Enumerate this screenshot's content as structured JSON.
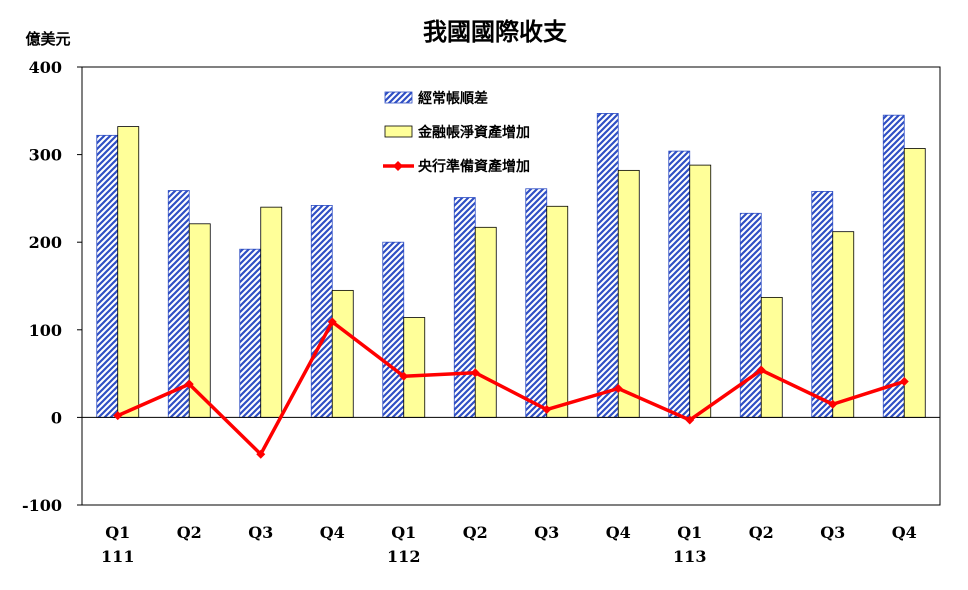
{
  "chart_data": {
    "type": "bar",
    "title": "我國國際收支",
    "ylabel": "億美元",
    "xlabel": "",
    "ylim": [
      -100,
      400
    ],
    "yticks": [
      400,
      300,
      200,
      100,
      0,
      -100
    ],
    "grid": false,
    "legend_position": "top-center",
    "categories": [
      "Q1",
      "Q2",
      "Q3",
      "Q4",
      "Q1",
      "Q2",
      "Q3",
      "Q4",
      "Q1",
      "Q2",
      "Q3",
      "Q4"
    ],
    "year_labels": [
      "111",
      "",
      "",
      "",
      "112",
      "",
      "",
      "",
      "113",
      "",
      "",
      ""
    ],
    "series": [
      {
        "name": "經常帳順差",
        "kind": "bar",
        "pattern": "hatch",
        "color": "#2f4fc4",
        "values": [
          322,
          259,
          192,
          242,
          200,
          251,
          261,
          347,
          304,
          233,
          258,
          345
        ]
      },
      {
        "name": "金融帳淨資產增加",
        "kind": "bar",
        "color": "#ffff99",
        "values": [
          332,
          221,
          240,
          145,
          114,
          217,
          241,
          282,
          288,
          137,
          212,
          307
        ]
      },
      {
        "name": "央行準備資產增加",
        "kind": "line",
        "color": "#ff0000",
        "values": [
          2,
          38,
          -42,
          109,
          47,
          51,
          9,
          33,
          -3,
          54,
          15,
          41
        ]
      }
    ]
  }
}
